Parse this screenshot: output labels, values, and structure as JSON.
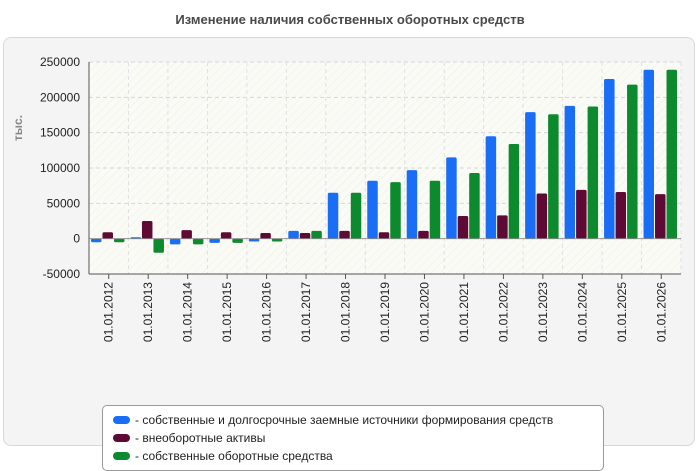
{
  "title": "Изменение наличия собственных оборотных средств",
  "chart_data": {
    "type": "bar",
    "title": "Изменение наличия собственных оборотных средств",
    "ylabel": "тыс.",
    "xlabel": "",
    "ylim": [
      -50000,
      250000
    ],
    "yticks": [
      -50000,
      0,
      50000,
      100000,
      150000,
      200000,
      250000
    ],
    "ytick_labels": [
      "-50000",
      "0",
      "50000",
      "100000",
      "150000",
      "200000",
      "250000"
    ],
    "categories": [
      "01.01.2012",
      "01.01.2013",
      "01.01.2014",
      "01.01.2015",
      "01.01.2016",
      "01.01.2017",
      "01.01.2018",
      "01.01.2019",
      "01.01.2020",
      "01.01.2021",
      "01.01.2022",
      "01.01.2023",
      "01.01.2024",
      "01.01.2025",
      "01.01.2026"
    ],
    "grid": true,
    "legend_position": "bottom",
    "series": [
      {
        "name": "- собственные и долгосрочные заемные источники формирования средств",
        "color": "#1a6ef5",
        "values": [
          -5000,
          2000,
          -8000,
          -6000,
          -4000,
          11000,
          65000,
          82000,
          97000,
          115000,
          145000,
          179000,
          188000,
          226000,
          239000
        ]
      },
      {
        "name": "- внеоборотные активы",
        "color": "#5e0a34",
        "values": [
          9000,
          25000,
          12000,
          9000,
          8000,
          8000,
          11000,
          9000,
          11000,
          32000,
          33000,
          64000,
          69000,
          66000,
          63000
        ]
      },
      {
        "name": "- собственные оборотные средства",
        "color": "#0d8a2e",
        "values": [
          -5000,
          -20000,
          -8000,
          -6000,
          -4000,
          11000,
          65000,
          80000,
          82000,
          93000,
          134000,
          176000,
          187000,
          218000,
          239000
        ]
      }
    ]
  }
}
